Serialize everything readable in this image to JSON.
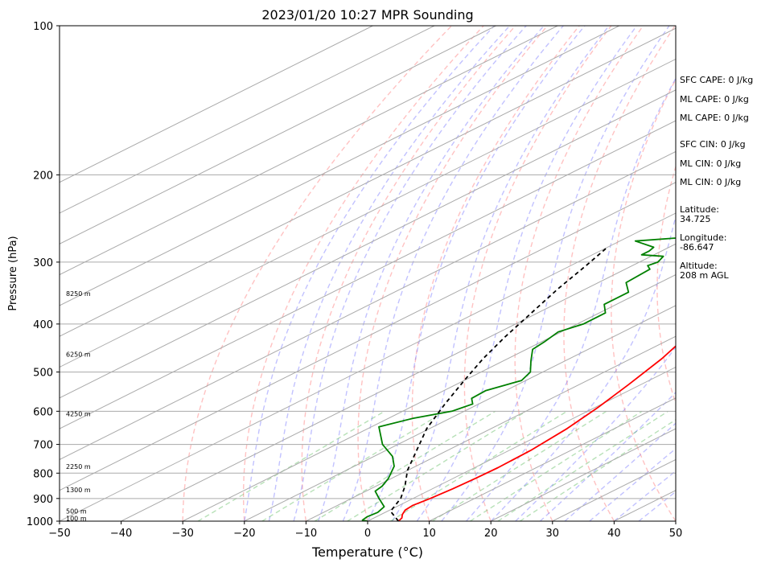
{
  "chart_data": {
    "type": "line",
    "title": "2023/01/20 10:27 MPR Sounding",
    "xlabel": "Temperature (°C)",
    "ylabel": "Pressure (hPa)",
    "xlim": [
      -50,
      50
    ],
    "ylim": [
      1000,
      100
    ],
    "y_scale": "log",
    "grid": true,
    "x_ticks": [
      -50,
      -40,
      -30,
      -20,
      -10,
      0,
      10,
      20,
      30,
      40,
      50
    ],
    "x_tick_labels": [
      "−50",
      "−40",
      "−30",
      "−20",
      "−10",
      "0",
      "10",
      "20",
      "30",
      "40",
      "50"
    ],
    "y_ticks": [
      1000,
      900,
      800,
      700,
      600,
      500,
      400,
      300,
      200,
      100
    ],
    "y_tick_labels": [
      "1000",
      "900",
      "800",
      "700",
      "600",
      "500",
      "400",
      "300",
      "200",
      "100"
    ],
    "height_labels": [
      {
        "p": 987,
        "label": "100 m"
      },
      {
        "p": 955,
        "label": "500 m"
      },
      {
        "p": 865,
        "label": "1300 m"
      },
      {
        "p": 775,
        "label": "2250 m"
      },
      {
        "p": 607,
        "label": "4250 m"
      },
      {
        "p": 460,
        "label": "6250 m"
      },
      {
        "p": 347,
        "label": "8250 m"
      }
    ],
    "series": [
      {
        "role": "temperature",
        "color": "#ff0000",
        "x": [
          5.0,
          4.5,
          3.5,
          2.5,
          2.2,
          2.8,
          3.3,
          3.6,
          3.8,
          3.5,
          2.3,
          0.5,
          -2.0,
          -5.0,
          -8.5,
          -12.0,
          -16.5,
          -19.8,
          -21.3,
          -22.0
        ],
        "y": [
          1000,
          985,
          970,
          950,
          930,
          900,
          860,
          820,
          780,
          720,
          650,
          590,
          530,
          470,
          420,
          380,
          335,
          300,
          280,
          266
        ]
      },
      {
        "role": "dewpoint",
        "color": "#008000",
        "x": [
          0.0,
          -1.2,
          -1.5,
          -1.2,
          -2.0,
          -5.5,
          -8.5,
          -9.0,
          -10.5,
          -13.5,
          -17.0,
          -22.5,
          -28.8,
          -26.0,
          -22.0,
          -21.0,
          -23.0,
          -23.2,
          -20.7,
          -22.0,
          -25.5,
          -29.0,
          -29.5,
          -30.5,
          -29.0,
          -29.0,
          -32.0,
          -32.0,
          -35.5,
          -36.0,
          -37.5,
          -37.0,
          -38.0,
          -42.0,
          -42.0,
          -42.5,
          -47.5,
          -37.0
        ],
        "y": [
          1000,
          995,
          980,
          960,
          935,
          900,
          870,
          850,
          820,
          775,
          740,
          700,
          645,
          620,
          600,
          580,
          565,
          545,
          520,
          500,
          475,
          450,
          435,
          415,
          400,
          380,
          365,
          345,
          330,
          310,
          305,
          300,
          292,
          290,
          285,
          280,
          272,
          265
        ]
      },
      {
        "role": "parcel",
        "color": "#000000",
        "dash": "5,4",
        "x": [
          5.0,
          0.5,
          -2.0,
          -5.3,
          -10.0,
          -15.0,
          -20.5,
          -25.5,
          -30.0,
          -34.0,
          -37.5,
          -41.0,
          -44.5,
          -47.5,
          -50.0
        ],
        "y": [
          1000,
          955,
          900,
          850,
          790,
          720,
          650,
          580,
          520,
          470,
          425,
          380,
          340,
          305,
          280
        ]
      }
    ],
    "annotations": [
      {
        "id": "sfc_cape",
        "text": "SFC CAPE: 0 J/kg"
      },
      {
        "id": "ml_cape_1",
        "text": "ML CAPE: 0 J/kg"
      },
      {
        "id": "ml_cape_2",
        "text": "ML CAPE: 0 J/kg"
      },
      {
        "id": "sfc_cin",
        "text": "SFC CIN: 0 J/kg"
      },
      {
        "id": "ml_cin_1",
        "text": "ML CIN: 0 J/kg"
      },
      {
        "id": "ml_cin_2",
        "text": "ML CIN: 0 J/kg"
      },
      {
        "id": "latitude",
        "text": "Latitude:\n34.725"
      },
      {
        "id": "longitude",
        "text": "Longitude:\n-86.647"
      },
      {
        "id": "altitude",
        "text": "Altitude:\n208 m AGL"
      }
    ]
  }
}
